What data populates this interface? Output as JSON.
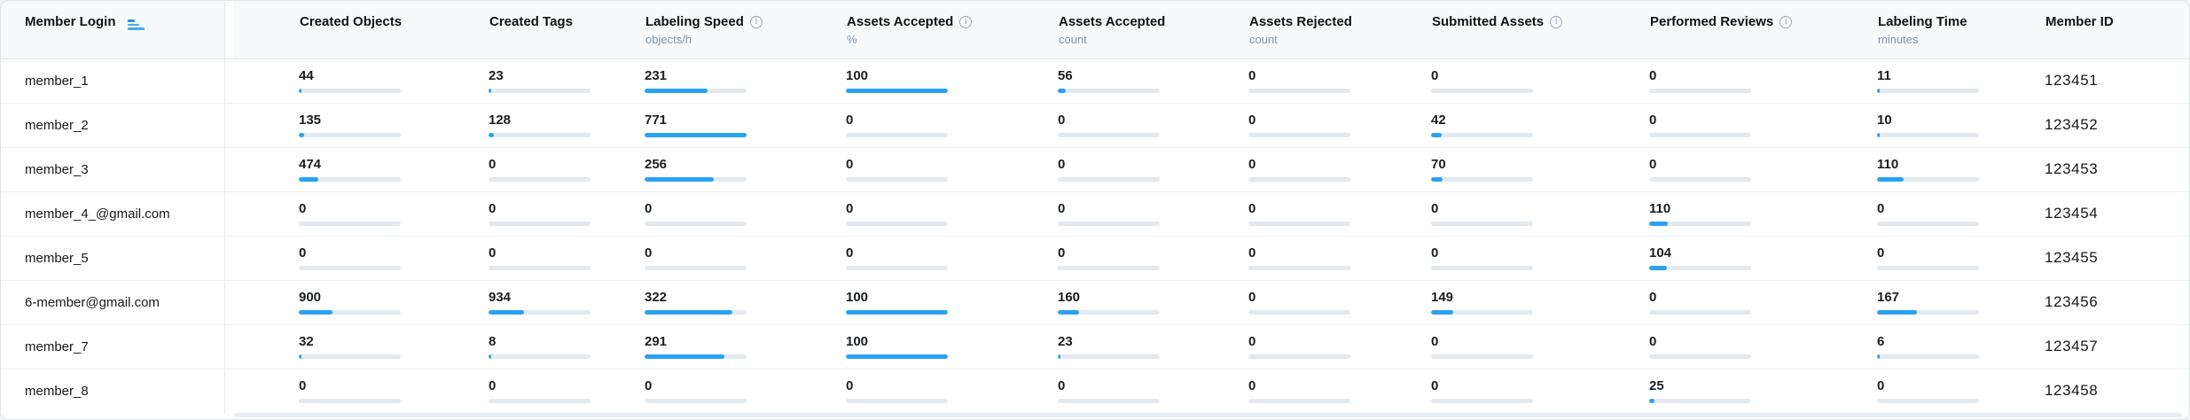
{
  "header": {
    "login_column": {
      "label": "Member Login",
      "sort_icon": "sort-ascending"
    },
    "columns": [
      {
        "key": "created-objects",
        "label": "Created Objects",
        "sub": "",
        "info": false
      },
      {
        "key": "created-tags",
        "label": "Created Tags",
        "sub": "",
        "info": false
      },
      {
        "key": "labeling-speed",
        "label": "Labeling Speed",
        "sub": "objects/h",
        "info": true
      },
      {
        "key": "assets-accepted-pct",
        "label": "Assets Accepted",
        "sub": "%",
        "info": true
      },
      {
        "key": "assets-accepted-count",
        "label": "Assets Accepted",
        "sub": "count",
        "info": false
      },
      {
        "key": "assets-rejected-count",
        "label": "Assets Rejected",
        "sub": "count",
        "info": false
      },
      {
        "key": "submitted-assets",
        "label": "Submitted Assets",
        "sub": "",
        "info": true
      },
      {
        "key": "performed-reviews",
        "label": "Performed Reviews",
        "sub": "",
        "info": true
      },
      {
        "key": "labeling-time",
        "label": "Labeling Time",
        "sub": "minutes",
        "info": false
      },
      {
        "key": "member-id",
        "label": "Member ID",
        "sub": "",
        "info": false
      }
    ]
  },
  "rows": [
    {
      "login": "member_1",
      "member_id": "123451",
      "metrics": [
        {
          "v": "44",
          "bar": 2
        },
        {
          "v": "23",
          "bar": 1
        },
        {
          "v": "231",
          "bar": 62
        },
        {
          "v": "100",
          "bar": 100
        },
        {
          "v": "56",
          "bar": 8
        },
        {
          "v": "0",
          "bar": 0
        },
        {
          "v": "0",
          "bar": 0
        },
        {
          "v": "0",
          "bar": 0
        },
        {
          "v": "11",
          "bar": 3
        }
      ]
    },
    {
      "login": "member_2",
      "member_id": "123452",
      "metrics": [
        {
          "v": "135",
          "bar": 5
        },
        {
          "v": "128",
          "bar": 5
        },
        {
          "v": "771",
          "bar": 100
        },
        {
          "v": "0",
          "bar": 0
        },
        {
          "v": "0",
          "bar": 0
        },
        {
          "v": "0",
          "bar": 0
        },
        {
          "v": "42",
          "bar": 10
        },
        {
          "v": "0",
          "bar": 0
        },
        {
          "v": "10",
          "bar": 3
        }
      ]
    },
    {
      "login": "member_3",
      "member_id": "123453",
      "metrics": [
        {
          "v": "474",
          "bar": 19
        },
        {
          "v": "0",
          "bar": 0
        },
        {
          "v": "256",
          "bar": 68
        },
        {
          "v": "0",
          "bar": 0
        },
        {
          "v": "0",
          "bar": 0
        },
        {
          "v": "0",
          "bar": 0
        },
        {
          "v": "70",
          "bar": 11
        },
        {
          "v": "0",
          "bar": 0
        },
        {
          "v": "110",
          "bar": 26
        }
      ]
    },
    {
      "login": "member_4_@gmail.com",
      "member_id": "123454",
      "metrics": [
        {
          "v": "0",
          "bar": 0
        },
        {
          "v": "0",
          "bar": 0
        },
        {
          "v": "0",
          "bar": 0
        },
        {
          "v": "0",
          "bar": 0
        },
        {
          "v": "0",
          "bar": 0
        },
        {
          "v": "0",
          "bar": 0
        },
        {
          "v": "0",
          "bar": 0
        },
        {
          "v": "110",
          "bar": 18
        },
        {
          "v": "0",
          "bar": 0
        }
      ]
    },
    {
      "login": "member_5",
      "member_id": "123455",
      "metrics": [
        {
          "v": "0",
          "bar": 0
        },
        {
          "v": "0",
          "bar": 0
        },
        {
          "v": "0",
          "bar": 0
        },
        {
          "v": "0",
          "bar": 0
        },
        {
          "v": "0",
          "bar": 0
        },
        {
          "v": "0",
          "bar": 0
        },
        {
          "v": "0",
          "bar": 0
        },
        {
          "v": "104",
          "bar": 17
        },
        {
          "v": "0",
          "bar": 0
        }
      ]
    },
    {
      "login": "6-member@gmail.com",
      "member_id": "123456",
      "metrics": [
        {
          "v": "900",
          "bar": 33
        },
        {
          "v": "934",
          "bar": 35
        },
        {
          "v": "322",
          "bar": 86
        },
        {
          "v": "100",
          "bar": 100
        },
        {
          "v": "160",
          "bar": 21
        },
        {
          "v": "0",
          "bar": 0
        },
        {
          "v": "149",
          "bar": 22
        },
        {
          "v": "0",
          "bar": 0
        },
        {
          "v": "167",
          "bar": 39
        }
      ]
    },
    {
      "login": "member_7",
      "member_id": "123457",
      "metrics": [
        {
          "v": "32",
          "bar": 2
        },
        {
          "v": "8",
          "bar": 1
        },
        {
          "v": "291",
          "bar": 78
        },
        {
          "v": "100",
          "bar": 100
        },
        {
          "v": "23",
          "bar": 3
        },
        {
          "v": "0",
          "bar": 0
        },
        {
          "v": "0",
          "bar": 0
        },
        {
          "v": "0",
          "bar": 0
        },
        {
          "v": "6",
          "bar": 2
        }
      ]
    },
    {
      "login": "member_8",
      "member_id": "123458",
      "metrics": [
        {
          "v": "0",
          "bar": 0
        },
        {
          "v": "0",
          "bar": 0
        },
        {
          "v": "0",
          "bar": 0
        },
        {
          "v": "0",
          "bar": 0
        },
        {
          "v": "0",
          "bar": 0
        },
        {
          "v": "0",
          "bar": 0
        },
        {
          "v": "0",
          "bar": 0
        },
        {
          "v": "25",
          "bar": 5
        },
        {
          "v": "0",
          "bar": 0
        }
      ]
    }
  ],
  "colors": {
    "accent_blue": "#29a2f1",
    "bar_track": "#e3e9ee",
    "header_bg": "#f7f9fb",
    "subtitle_text": "#8493a5"
  }
}
